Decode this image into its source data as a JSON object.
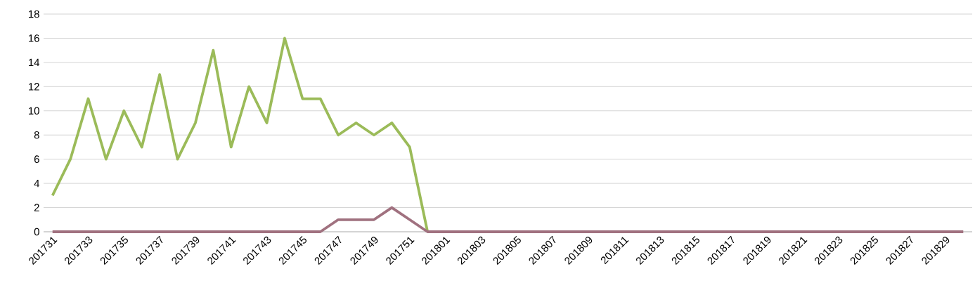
{
  "chart_data": {
    "type": "line",
    "categories": [
      "201731",
      null,
      "201733",
      null,
      "201735",
      null,
      "201737",
      null,
      "201739",
      null,
      "201741",
      null,
      "201743",
      null,
      "201745",
      null,
      "201747",
      null,
      "201749",
      null,
      "201751",
      null,
      "201801",
      null,
      "201803",
      null,
      "201805",
      null,
      "201807",
      null,
      "201809",
      null,
      "201811",
      null,
      "201813",
      null,
      "201815",
      null,
      "201817",
      null,
      "201819",
      null,
      "201821",
      null,
      "201823",
      null,
      "201825",
      null,
      "201827",
      null,
      "201829",
      null
    ],
    "series": [
      {
        "color": "#9bbb59",
        "values": [
          3,
          6,
          11,
          6,
          10,
          7,
          13,
          6,
          9,
          15,
          7,
          12,
          9,
          16,
          11,
          11,
          8,
          9,
          8,
          9,
          7,
          0,
          null,
          null,
          null,
          null,
          null,
          null,
          null,
          null,
          null,
          null,
          null,
          null,
          null,
          null,
          null,
          null,
          null,
          null,
          null,
          null,
          null,
          null,
          null,
          null,
          null,
          null,
          null,
          null,
          null,
          null
        ]
      },
      {
        "color": "#a0717f",
        "values": [
          0,
          0,
          0,
          0,
          0,
          0,
          0,
          0,
          0,
          0,
          0,
          0,
          0,
          0,
          0,
          0,
          1,
          1,
          1,
          2,
          1,
          0,
          0,
          0,
          0,
          0,
          0,
          0,
          0,
          0,
          0,
          0,
          0,
          0,
          0,
          0,
          0,
          0,
          0,
          0,
          0,
          0,
          0,
          0,
          0,
          0,
          0,
          0,
          0,
          0,
          0,
          0
        ]
      }
    ],
    "ylim": [
      0,
      18
    ],
    "yticks": [
      0,
      2,
      4,
      6,
      8,
      10,
      12,
      14,
      16,
      18
    ],
    "grid": "y"
  }
}
